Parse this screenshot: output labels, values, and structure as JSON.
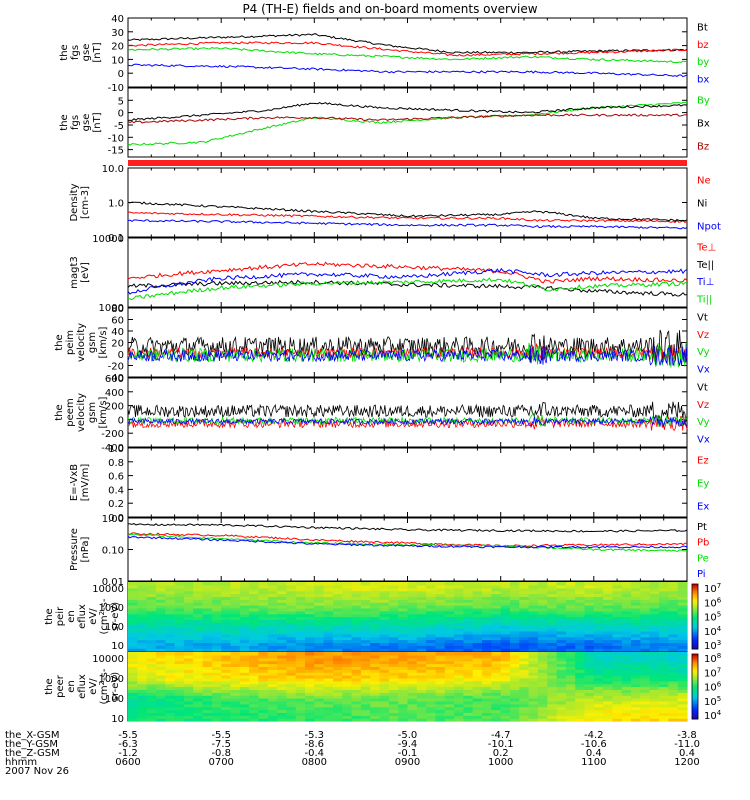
{
  "title": "P4 (TH-E) fields and on-board moments overview",
  "colors": {
    "black": "#000000",
    "red": "#ff0000",
    "green": "#00dd00",
    "blue": "#0000ff",
    "darkred": "#aa0000"
  },
  "ephem": {
    "labels": [
      "the_X-GSM",
      "the_Y-GSM",
      "the_Z-GSM",
      "hhmm",
      "2007 Nov 26"
    ],
    "x_gsm": [
      "-5.5",
      "-5.5",
      "-5.3",
      "-5.0",
      "-4.7",
      "-4.2",
      "-3.8"
    ],
    "y_gsm": [
      "-6.3",
      "-7.5",
      "-8.6",
      "-9.4",
      "-10.1",
      "-10.6",
      "-11.0"
    ],
    "z_gsm": [
      "-1.2",
      "-0.8",
      "-0.4",
      "-0.1",
      "0.2",
      "0.4",
      "0.4"
    ],
    "hhmm": [
      "0600",
      "0700",
      "0800",
      "0900",
      "1000",
      "1100",
      "1200"
    ]
  },
  "chart_data": [
    {
      "type": "line",
      "ylabel": [
        "the",
        "fgs",
        "gse",
        "[nT]"
      ],
      "ylim": [
        -10,
        40
      ],
      "yticks": [
        "40",
        "30",
        "20",
        "10",
        "0",
        "-10"
      ],
      "series": [
        {
          "name": "Bt",
          "color": "#000000",
          "x": [
            6,
            7,
            8,
            8.8,
            9.5,
            10.3,
            11,
            12
          ],
          "values": [
            24,
            26,
            28,
            20,
            15,
            15,
            16,
            17
          ]
        },
        {
          "name": "bz",
          "color": "#ff0000",
          "x": [
            6,
            7,
            8,
            8.8,
            9.5,
            10.3,
            11,
            12
          ],
          "values": [
            20,
            22,
            22,
            17,
            13,
            14,
            15,
            17
          ]
        },
        {
          "name": "by",
          "color": "#00dd00",
          "x": [
            6,
            7,
            8,
            8.8,
            9.5,
            10.3,
            11,
            12
          ],
          "values": [
            17,
            18,
            14,
            12,
            10,
            12,
            10,
            8
          ]
        },
        {
          "name": "bx",
          "color": "#0000ff",
          "x": [
            6,
            7,
            8,
            8.8,
            9.5,
            10.3,
            11,
            12
          ],
          "values": [
            6,
            5,
            3,
            1,
            1,
            1,
            0,
            -2
          ]
        }
      ]
    },
    {
      "type": "line",
      "ylabel": [
        "the",
        "fgs",
        "gse",
        "[nT]"
      ],
      "ylim": [
        -18,
        10
      ],
      "yticks": [
        "5",
        "0",
        "-5",
        "-10",
        "-15"
      ],
      "series": [
        {
          "name": "By",
          "color": "#00dd00",
          "x": [
            6,
            6.8,
            7.5,
            8,
            8.7,
            9.5,
            10.3,
            11,
            12
          ],
          "values": [
            -13,
            -12,
            -6,
            -2,
            -4,
            -2,
            -1,
            2,
            4
          ]
        },
        {
          "name": "Bx",
          "color": "#000000",
          "x": [
            6,
            6.8,
            7.5,
            8,
            8.7,
            9.5,
            10.3,
            11,
            12
          ],
          "values": [
            -3,
            -1,
            1,
            4,
            2,
            1,
            0,
            2,
            3
          ]
        },
        {
          "name": "Bz",
          "color": "#aa0000",
          "x": [
            6,
            6.8,
            7.5,
            8,
            8.7,
            9.5,
            10.3,
            11,
            12
          ],
          "values": [
            -4,
            -3,
            -2,
            -2,
            -3,
            -2,
            -1,
            -1,
            -1
          ]
        }
      ]
    },
    {
      "type": "line",
      "ylabel": [
        "Density",
        "[cm-3]"
      ],
      "ylim": [
        0.1,
        10
      ],
      "scale": "log",
      "yticks": [
        "10.0",
        "1.0",
        "0.1"
      ],
      "series": [
        {
          "name": "Ne",
          "color": "#ff0000",
          "x": [
            6,
            7,
            8,
            9,
            10,
            10.4,
            11,
            12
          ],
          "values": [
            0.5,
            0.45,
            0.4,
            0.35,
            0.35,
            0.3,
            0.3,
            0.28
          ]
        },
        {
          "name": "Ni",
          "color": "#000000",
          "x": [
            6,
            7,
            8,
            9,
            10,
            10.4,
            11,
            12
          ],
          "values": [
            1.0,
            0.75,
            0.55,
            0.4,
            0.45,
            0.55,
            0.35,
            0.3
          ]
        },
        {
          "name": "Npot",
          "color": "#0000ff",
          "x": [
            6,
            7,
            8,
            9,
            10,
            10.4,
            11,
            12
          ],
          "values": [
            0.3,
            0.28,
            0.25,
            0.22,
            0.22,
            0.2,
            0.2,
            0.18
          ]
        }
      ]
    },
    {
      "type": "line",
      "ylabel": [
        "magt3",
        "[eV]"
      ],
      "ylim": [
        1000,
        10000
      ],
      "scale": "log",
      "yticks": [
        "10000",
        "1000"
      ],
      "series": [
        {
          "name": "Te⊥",
          "color": "#ff0000",
          "x": [
            6,
            7,
            8,
            9,
            10,
            10.5,
            11,
            12
          ],
          "values": [
            2600,
            3400,
            4200,
            3800,
            3300,
            2300,
            2600,
            2400
          ]
        },
        {
          "name": "Te||",
          "color": "#000000",
          "x": [
            6,
            7,
            8,
            9,
            10,
            10.5,
            11,
            12
          ],
          "values": [
            2000,
            2200,
            2300,
            2100,
            2000,
            1900,
            1700,
            1500
          ]
        },
        {
          "name": "Ti⊥",
          "color": "#0000ff",
          "x": [
            6,
            7,
            8,
            9,
            10,
            10.5,
            11,
            12
          ],
          "values": [
            1600,
            2600,
            3000,
            2700,
            3400,
            2900,
            3100,
            3300
          ]
        },
        {
          "name": "Ti||",
          "color": "#00dd00",
          "x": [
            6,
            7,
            8,
            9,
            10,
            10.5,
            11,
            12
          ],
          "values": [
            1300,
            1900,
            2200,
            2300,
            2500,
            1800,
            2000,
            2200
          ]
        }
      ]
    },
    {
      "type": "line",
      "ylabel": [
        "the",
        "peim",
        "velocity",
        "gsm",
        "[km/s]"
      ],
      "ylim": [
        -40,
        80
      ],
      "yticks": [
        "80",
        "60",
        "40",
        "20",
        "0",
        "-20",
        "-40"
      ],
      "series": [
        {
          "name": "Vt",
          "color": "#000000",
          "center": 14,
          "amp": 16
        },
        {
          "name": "Vz",
          "color": "#ff0000",
          "center": 2,
          "amp": 9
        },
        {
          "name": "Vy",
          "color": "#00dd00",
          "center": -2,
          "amp": 12
        },
        {
          "name": "Vx",
          "color": "#0000ff",
          "center": -3,
          "amp": 10
        }
      ]
    },
    {
      "type": "line",
      "ylabel": [
        "the",
        "peem",
        "velocity",
        "gsm",
        "[km/s]"
      ],
      "ylim": [
        -400,
        600
      ],
      "yticks": [
        "600",
        "400",
        "200",
        "0",
        "-200",
        "-400"
      ],
      "series": [
        {
          "name": "Vt",
          "color": "#000000",
          "center": 120,
          "amp": 90
        },
        {
          "name": "Vz",
          "color": "#ff0000",
          "center": -60,
          "amp": 60
        },
        {
          "name": "Vy",
          "color": "#00dd00",
          "center": -20,
          "amp": 50
        },
        {
          "name": "Vx",
          "color": "#0000ff",
          "center": -30,
          "amp": 40
        }
      ]
    },
    {
      "type": "line",
      "ylabel": [
        "E=-VxB",
        "[mV/m]"
      ],
      "ylim": [
        0,
        1
      ],
      "yticks": [
        "1.0",
        "0.8",
        "0.6",
        "0.4",
        "0.2",
        "0.0"
      ],
      "series": [
        {
          "name": "Ez",
          "color": "#ff0000",
          "values": []
        },
        {
          "name": "Ey",
          "color": "#00dd00",
          "values": []
        },
        {
          "name": "Ex",
          "color": "#0000ff",
          "values": []
        }
      ]
    },
    {
      "type": "line",
      "ylabel": [
        "Pressure",
        "[nPa]"
      ],
      "ylim": [
        0.01,
        1
      ],
      "scale": "log",
      "yticks": [
        "1.00",
        "0.10",
        "0.01"
      ],
      "series": [
        {
          "name": "Pt",
          "color": "#000000",
          "x": [
            6,
            7,
            8,
            9,
            10,
            11,
            12
          ],
          "values": [
            0.62,
            0.6,
            0.5,
            0.42,
            0.4,
            0.38,
            0.4
          ]
        },
        {
          "name": "Pb",
          "color": "#ff0000",
          "x": [
            6,
            7,
            8,
            9,
            10,
            11,
            12
          ],
          "values": [
            0.32,
            0.28,
            0.2,
            0.16,
            0.13,
            0.14,
            0.15
          ]
        },
        {
          "name": "Pe",
          "color": "#00dd00",
          "x": [
            6,
            7,
            8,
            9,
            10,
            11,
            12
          ],
          "values": [
            0.3,
            0.22,
            0.16,
            0.14,
            0.13,
            0.1,
            0.09
          ]
        },
        {
          "name": "Pi",
          "color": "#0000ff",
          "x": [
            6,
            7,
            8,
            9,
            10,
            11,
            12
          ],
          "values": [
            0.25,
            0.2,
            0.15,
            0.13,
            0.12,
            0.12,
            0.12
          ]
        }
      ]
    },
    {
      "type": "heatmap",
      "ylabel": [
        "the",
        "peir",
        "en",
        "eflux",
        "eV/",
        "(cm^2-s-",
        "sr-eV)"
      ],
      "ylim": [
        5,
        20000
      ],
      "scale": "log",
      "yticks": [
        "10000",
        "1000",
        "100",
        "10"
      ],
      "colorbar": {
        "ticks": [
          "10^7",
          "10^6",
          "10^5",
          "10^4",
          "10^3"
        ],
        "range": [
          2.5,
          7.3
        ]
      },
      "levels": {
        "x": [
          6,
          7,
          8,
          9,
          10,
          11,
          12
        ],
        "y": [
          10,
          100,
          1000,
          10000
        ],
        "z": [
          [
            4.0,
            4.5,
            5.2,
            5.6
          ],
          [
            4.0,
            4.6,
            5.3,
            5.7
          ],
          [
            3.8,
            4.5,
            5.4,
            5.8
          ],
          [
            3.7,
            4.6,
            5.3,
            5.9
          ],
          [
            3.5,
            4.3,
            5.2,
            5.7
          ],
          [
            3.6,
            4.4,
            5.3,
            5.8
          ],
          [
            3.8,
            4.5,
            5.2,
            5.6
          ]
        ]
      }
    },
    {
      "type": "heatmap",
      "ylabel": [
        "the",
        "peer",
        "en",
        "eflux",
        "eV/",
        "(cm^2-s-",
        "sr-eV)"
      ],
      "ylim": [
        7,
        20000
      ],
      "scale": "log",
      "yticks": [
        "10000",
        "1000",
        "100",
        "10"
      ],
      "colorbar": {
        "ticks": [
          "10^8",
          "10^7",
          "10^6",
          "10^5",
          "10^4"
        ],
        "range": [
          3.7,
          8.3
        ]
      },
      "levels": {
        "x": [
          6,
          7,
          8,
          9,
          10,
          11,
          12
        ],
        "y": [
          10,
          100,
          1000,
          10000
        ],
        "z": [
          [
            6.0,
            5.8,
            6.9,
            7.1
          ],
          [
            6.0,
            6.2,
            7.2,
            7.4
          ],
          [
            6.2,
            6.4,
            7.4,
            7.7
          ],
          [
            6.3,
            6.4,
            7.3,
            7.6
          ],
          [
            6.3,
            6.2,
            7.1,
            7.5
          ],
          [
            7.2,
            6.8,
            6.0,
            5.6
          ],
          [
            7.3,
            6.9,
            6.0,
            5.5
          ]
        ]
      }
    }
  ]
}
